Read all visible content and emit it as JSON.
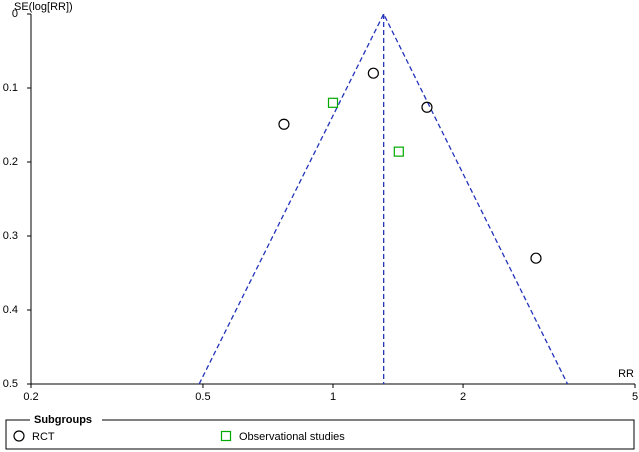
{
  "chart_data": {
    "type": "scatter",
    "y_label": "SE(log[RR])",
    "x_label": "RR",
    "xscale": "log",
    "xlim": [
      0.2,
      5
    ],
    "xticks": [
      0.2,
      0.5,
      1,
      2,
      5
    ],
    "ylim": [
      0,
      0.5
    ],
    "yticks": [
      0,
      0.1,
      0.2,
      0.3,
      0.4,
      0.5
    ],
    "y_inverted": true,
    "series": [
      {
        "name": "RCT",
        "marker": "circle",
        "color": "#000000",
        "x": [
          0.77,
          1.24,
          1.65,
          2.95
        ],
        "values": [
          0.149,
          0.08,
          0.126,
          0.33
        ]
      },
      {
        "name": "Observational studies",
        "marker": "square",
        "color": "#00aa00",
        "x": [
          1.0,
          1.42
        ],
        "values": [
          0.12,
          0.186
        ]
      }
    ],
    "funnel_color": "#2233bb",
    "funnel_lines": [
      {
        "x": [
          0.49,
          1.31,
          3.49
        ],
        "values": [
          0.5,
          0,
          0.5
        ]
      },
      {
        "x": [
          1.31,
          1.31
        ],
        "values": [
          0,
          0.5
        ]
      }
    ],
    "legend_title": "Subgroups"
  }
}
